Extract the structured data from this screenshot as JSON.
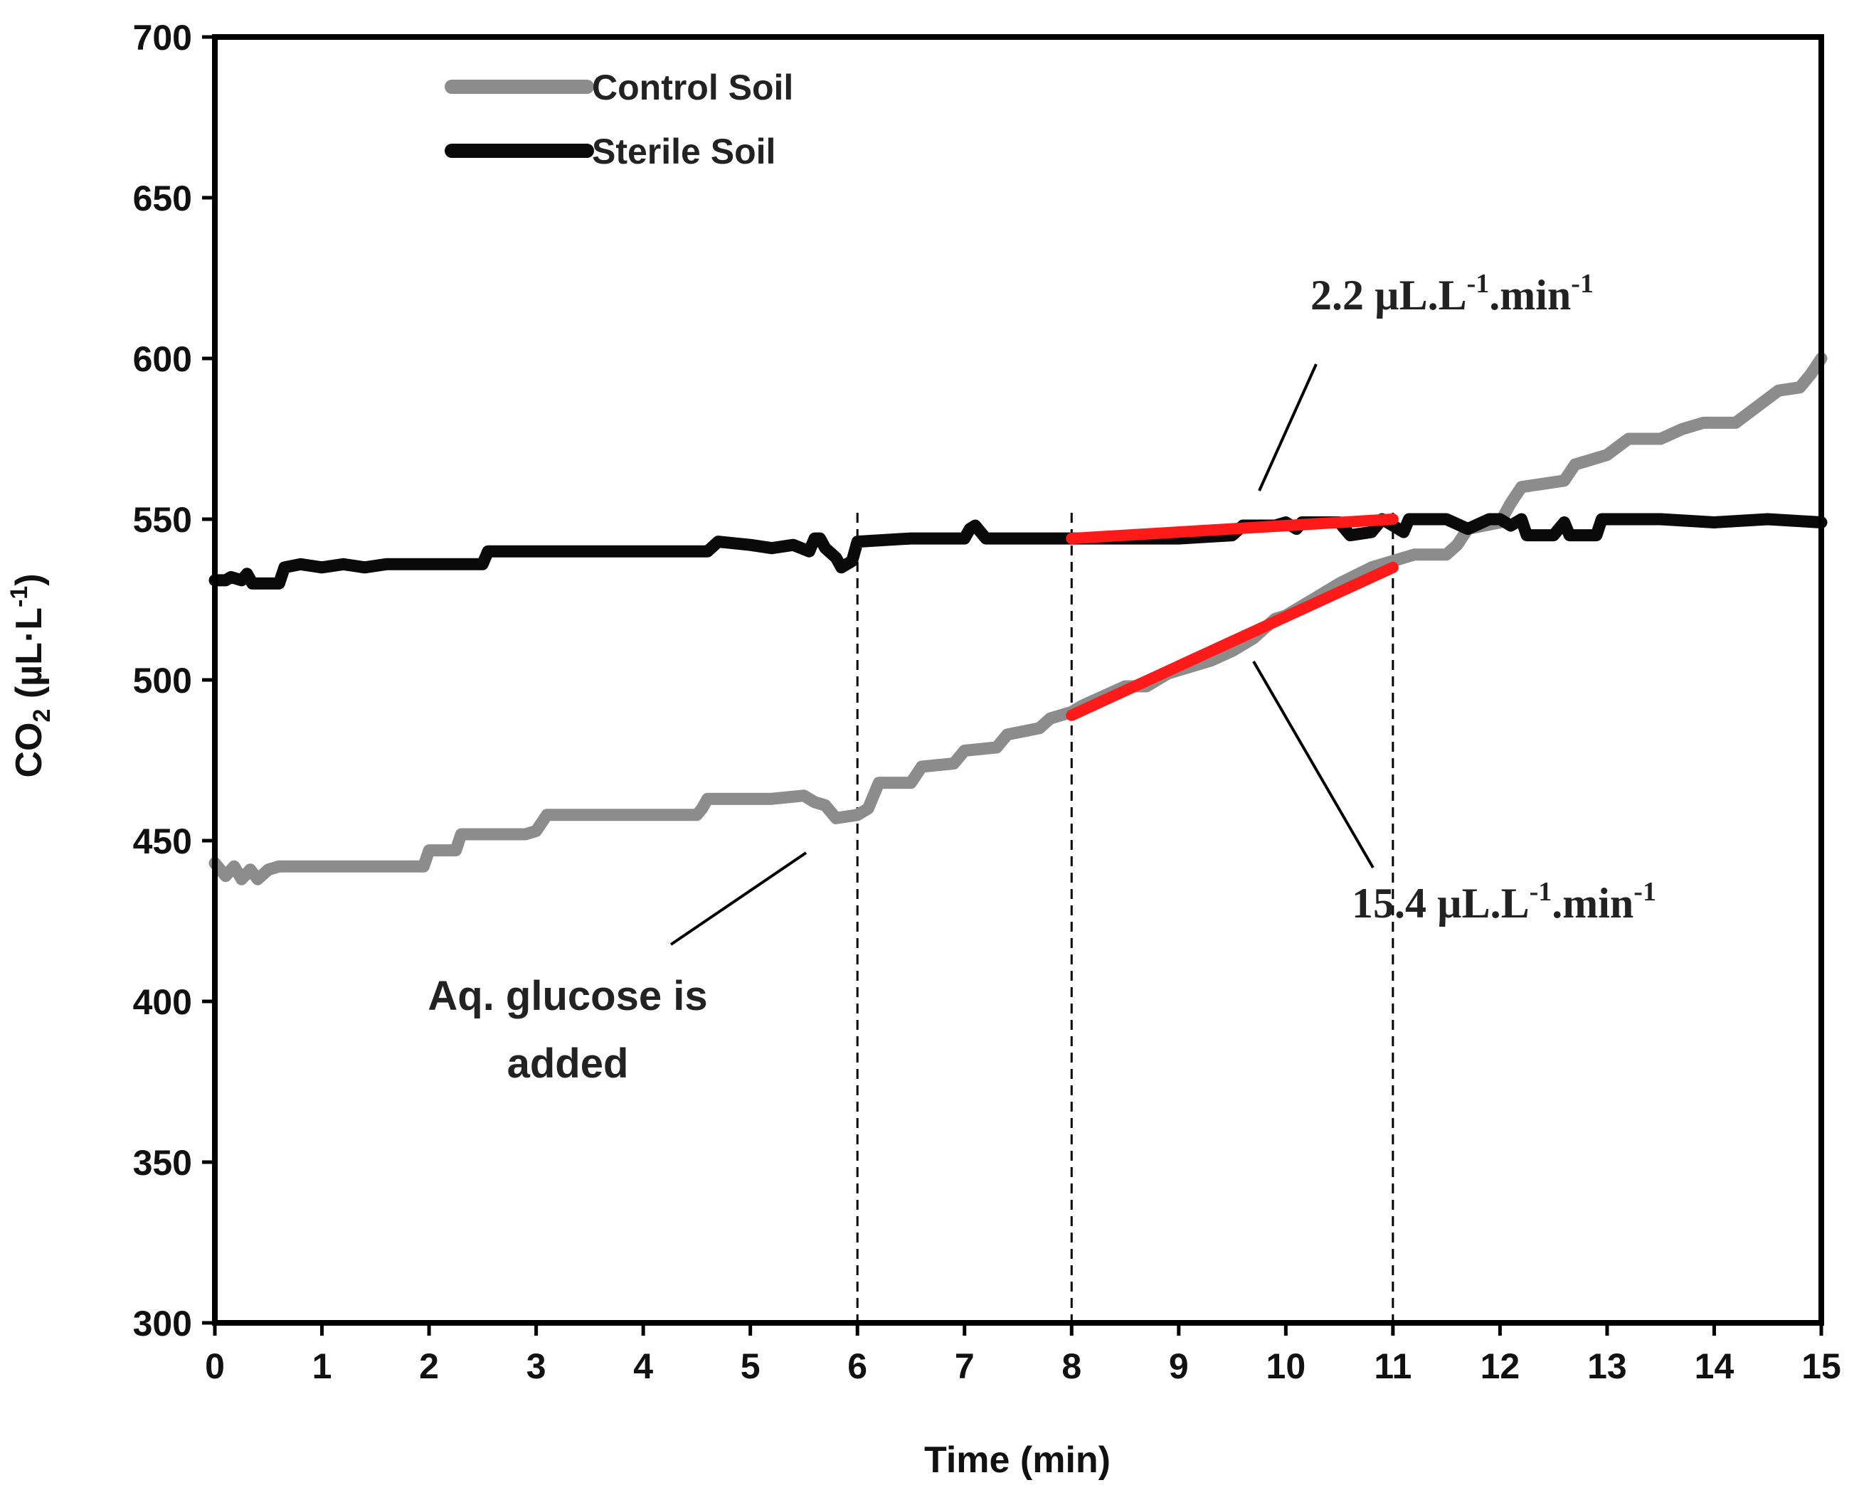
{
  "chart_data": {
    "type": "line",
    "title": "",
    "xlabel": "Time (min)",
    "ylabel": {
      "pre": "CO",
      "sub": "2",
      "post": " (µL·L",
      "sup": "-1",
      "end": ")"
    },
    "xlim": [
      0,
      15
    ],
    "ylim": [
      300,
      700
    ],
    "x_ticks": [
      0,
      1,
      2,
      3,
      4,
      5,
      6,
      7,
      8,
      9,
      10,
      11,
      12,
      13,
      14,
      15
    ],
    "y_ticks": [
      300,
      350,
      400,
      450,
      500,
      550,
      600,
      650,
      700
    ],
    "legend": {
      "position": "top-left",
      "entries": [
        "Control Soil",
        "Sterile Soil"
      ]
    },
    "colors": {
      "control": "#8c8c8c",
      "sterile": "#0a0a0a",
      "fit": "#ff1a1a",
      "axis": "#000000"
    },
    "series": [
      {
        "name": "Control Soil",
        "points": [
          [
            0,
            443
          ],
          [
            0.05,
            441
          ],
          [
            0.1,
            439
          ],
          [
            0.18,
            442
          ],
          [
            0.25,
            438
          ],
          [
            0.33,
            441
          ],
          [
            0.4,
            438
          ],
          [
            0.5,
            441
          ],
          [
            0.6,
            442
          ],
          [
            0.9,
            442
          ],
          [
            1.5,
            442
          ],
          [
            1.95,
            442
          ],
          [
            2.0,
            447
          ],
          [
            2.25,
            447
          ],
          [
            2.3,
            452
          ],
          [
            2.9,
            452
          ],
          [
            3.0,
            453
          ],
          [
            3.1,
            458
          ],
          [
            3.7,
            458
          ],
          [
            4.5,
            458
          ],
          [
            4.55,
            460
          ],
          [
            4.6,
            463
          ],
          [
            5.2,
            463
          ],
          [
            5.5,
            464
          ],
          [
            5.6,
            462
          ],
          [
            5.7,
            461
          ],
          [
            5.8,
            457
          ],
          [
            6.0,
            458
          ],
          [
            6.1,
            460
          ],
          [
            6.2,
            468
          ],
          [
            6.5,
            468
          ],
          [
            6.6,
            473
          ],
          [
            6.9,
            474
          ],
          [
            7.0,
            478
          ],
          [
            7.3,
            479
          ],
          [
            7.4,
            483
          ],
          [
            7.7,
            485
          ],
          [
            7.8,
            488
          ],
          [
            8.0,
            490
          ],
          [
            8.1,
            492
          ],
          [
            8.3,
            495
          ],
          [
            8.5,
            498
          ],
          [
            8.7,
            498
          ],
          [
            8.9,
            502
          ],
          [
            9.0,
            503
          ],
          [
            9.3,
            506
          ],
          [
            9.5,
            509
          ],
          [
            9.7,
            513
          ],
          [
            9.9,
            519
          ],
          [
            10.0,
            520
          ],
          [
            10.3,
            526
          ],
          [
            10.5,
            530
          ],
          [
            10.8,
            535
          ],
          [
            11.0,
            537
          ],
          [
            11.2,
            539
          ],
          [
            11.5,
            539
          ],
          [
            11.6,
            542
          ],
          [
            11.7,
            547
          ],
          [
            12.0,
            549
          ],
          [
            12.1,
            555
          ],
          [
            12.2,
            560
          ],
          [
            12.6,
            562
          ],
          [
            12.7,
            567
          ],
          [
            13.0,
            570
          ],
          [
            13.2,
            575
          ],
          [
            13.5,
            575
          ],
          [
            13.7,
            578
          ],
          [
            13.9,
            580
          ],
          [
            14.2,
            580
          ],
          [
            14.4,
            585
          ],
          [
            14.6,
            590
          ],
          [
            14.8,
            591
          ],
          [
            14.9,
            595
          ],
          [
            15.0,
            600
          ]
        ]
      },
      {
        "name": "Sterile Soil",
        "points": [
          [
            0,
            531
          ],
          [
            0.1,
            531
          ],
          [
            0.15,
            532
          ],
          [
            0.25,
            531
          ],
          [
            0.3,
            533
          ],
          [
            0.35,
            530
          ],
          [
            0.6,
            530
          ],
          [
            0.65,
            535
          ],
          [
            0.8,
            536
          ],
          [
            1.0,
            535
          ],
          [
            1.2,
            536
          ],
          [
            1.4,
            535
          ],
          [
            1.6,
            536
          ],
          [
            2.5,
            536
          ],
          [
            2.55,
            540
          ],
          [
            3.0,
            540
          ],
          [
            3.8,
            540
          ],
          [
            4.6,
            540
          ],
          [
            4.7,
            543
          ],
          [
            5.0,
            542
          ],
          [
            5.2,
            541
          ],
          [
            5.4,
            542
          ],
          [
            5.55,
            540
          ],
          [
            5.6,
            544
          ],
          [
            5.65,
            544
          ],
          [
            5.7,
            541
          ],
          [
            5.8,
            538
          ],
          [
            5.85,
            535
          ],
          [
            5.95,
            537
          ],
          [
            6.0,
            543
          ],
          [
            6.5,
            544
          ],
          [
            7.0,
            544
          ],
          [
            7.05,
            547
          ],
          [
            7.1,
            548
          ],
          [
            7.15,
            546
          ],
          [
            7.2,
            544
          ],
          [
            7.5,
            544
          ],
          [
            8.0,
            544
          ],
          [
            8.5,
            544
          ],
          [
            9.0,
            544
          ],
          [
            9.5,
            545
          ],
          [
            9.6,
            548
          ],
          [
            9.9,
            548
          ],
          [
            10.0,
            549
          ],
          [
            10.1,
            547
          ],
          [
            10.15,
            549
          ],
          [
            10.5,
            549
          ],
          [
            10.6,
            545
          ],
          [
            10.8,
            546
          ],
          [
            10.9,
            550
          ],
          [
            11.0,
            548
          ],
          [
            11.1,
            546
          ],
          [
            11.15,
            550
          ],
          [
            11.5,
            550
          ],
          [
            11.7,
            547
          ],
          [
            11.9,
            550
          ],
          [
            12.0,
            550
          ],
          [
            12.1,
            548
          ],
          [
            12.2,
            550
          ],
          [
            12.25,
            545
          ],
          [
            12.5,
            545
          ],
          [
            12.6,
            549
          ],
          [
            12.65,
            545
          ],
          [
            12.9,
            545
          ],
          [
            12.95,
            550
          ],
          [
            13.5,
            550
          ],
          [
            14.0,
            549
          ],
          [
            14.5,
            550
          ],
          [
            15.0,
            549
          ]
        ]
      }
    ],
    "fits": [
      {
        "name": "sterile-fit",
        "from": [
          8.0,
          544
        ],
        "to": [
          11.0,
          550
        ]
      },
      {
        "name": "control-fit",
        "from": [
          8.0,
          489
        ],
        "to": [
          11.0,
          535
        ]
      }
    ],
    "reference_lines_x": [
      6,
      8,
      11
    ],
    "annotations": {
      "glucose_line1": "Aq. glucose is",
      "glucose_line2": "added",
      "sterile_rate": {
        "value": "2.2 µL.L",
        "sup1": "-1",
        "mid": ".min",
        "sup2": "-1"
      },
      "control_rate": {
        "value": "15.4 µL.L",
        "sup1": "-1",
        "mid": ".min",
        "sup2": "-1"
      }
    }
  }
}
